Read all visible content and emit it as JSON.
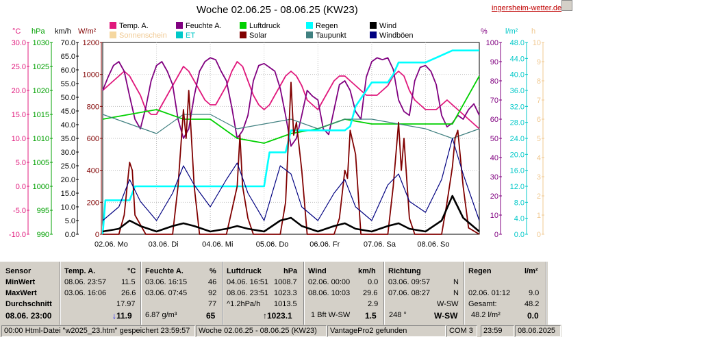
{
  "header": {
    "title": "Woche 02.06.25 - 08.06.25 (KW23)",
    "site": "ingersheim-wetter.de"
  },
  "legend": [
    {
      "label": "Temp. A.",
      "color": "#e0187c"
    },
    {
      "label": "Feuchte A.",
      "color": "#800080"
    },
    {
      "label": "Luftdruck",
      "color": "#00d000"
    },
    {
      "label": "Regen",
      "color": "#00ffff"
    },
    {
      "label": "Wind",
      "color": "#000000"
    },
    {
      "label": "Sonnenschein",
      "color": "#f5d7a0"
    },
    {
      "label": "ET",
      "color": "#00c8c8"
    },
    {
      "label": "Solar",
      "color": "#800000"
    },
    {
      "label": "Taupunkt",
      "color": "#408080"
    },
    {
      "label": "Windböen",
      "color": "#000080"
    }
  ],
  "units": {
    "celsius": "°C",
    "hpa": "hPa",
    "kmh": "km/h",
    "wm2": "W/m²",
    "pct": "%",
    "lm2": "l/m²",
    "h": "h"
  },
  "chart_data": {
    "type": "line",
    "title": "Woche 02.06.25 - 08.06.25 (KW23)",
    "x_labels": [
      "02.06.  Mo",
      "03.06.  Di",
      "04.06.  Mi",
      "05.06.  Do",
      "06.06.  Fr",
      "07.06.  Sa",
      "08.06.  So"
    ],
    "axes": {
      "temp": {
        "unit": "°C",
        "range": [
          -10,
          30
        ],
        "ticks": [
          "30.0",
          "25.0",
          "20.0",
          "15.0",
          "10.0",
          "5.0",
          "0.0",
          "-5.0",
          "-10.0"
        ],
        "color": "#e0187c"
      },
      "pressure": {
        "unit": "hPa",
        "range": [
          990,
          1030
        ],
        "ticks": [
          "1030",
          "1025",
          "1020",
          "1015",
          "1010",
          "1005",
          "1000",
          "995",
          "990"
        ],
        "color": "#00a000"
      },
      "wind": {
        "unit": "km/h",
        "range": [
          0,
          70
        ],
        "ticks": [
          "70.0",
          "65.0",
          "60.0",
          "55.0",
          "50.0",
          "45.0",
          "40.0",
          "35.0",
          "30.0",
          "25.0",
          "20.0",
          "15.0",
          "10.0",
          "5.0",
          "0.0"
        ],
        "color": "#000000"
      },
      "solar": {
        "unit": "W/m²",
        "range": [
          0,
          1200
        ],
        "ticks": [
          "1200",
          "1000",
          "800",
          "600",
          "400",
          "200",
          "0"
        ],
        "color": "#800000"
      },
      "humidity": {
        "unit": "%",
        "range": [
          0,
          100
        ],
        "ticks": [
          "100",
          "90",
          "80",
          "70",
          "60",
          "50",
          "40",
          "30",
          "20",
          "10",
          "0"
        ],
        "color": "#800080"
      },
      "rain": {
        "unit": "l/m²",
        "range": [
          0,
          48
        ],
        "ticks": [
          "48.0",
          "44.0",
          "40.0",
          "36.0",
          "32.0",
          "28.0",
          "24.0",
          "20.0",
          "16.0",
          "12.0",
          "8.0",
          "4.0",
          "0.0"
        ],
        "color": "#00c8c8"
      },
      "sun": {
        "unit": "h",
        "range": [
          0,
          10
        ],
        "ticks": [
          "10",
          "9",
          "8",
          "7",
          "6",
          "5",
          "4",
          "3",
          "2",
          "1",
          "0"
        ],
        "color": "#f0c890"
      }
    },
    "series": [
      {
        "name": "Temp. A.",
        "axis": "temp",
        "color": "#e0187c",
        "x": [
          0,
          0.1,
          0.2,
          0.3,
          0.4,
          0.5,
          0.6,
          0.7,
          0.8,
          0.9,
          1.0,
          1.1,
          1.2,
          1.3,
          1.4,
          1.5,
          1.6,
          1.7,
          1.8,
          1.9,
          2.0,
          2.1,
          2.2,
          2.3,
          2.4,
          2.5,
          2.6,
          2.7,
          2.8,
          2.9,
          3.0,
          3.1,
          3.2,
          3.3,
          3.4,
          3.5,
          3.6,
          3.7,
          3.8,
          3.9,
          4.0,
          4.1,
          4.2,
          4.3,
          4.4,
          4.5,
          4.6,
          4.7,
          4.8,
          4.9,
          5.0,
          5.1,
          5.2,
          5.3,
          5.4,
          5.5,
          5.6,
          5.7,
          5.8,
          5.9,
          6.0,
          6.1,
          6.2,
          6.3,
          6.4,
          6.5,
          6.6,
          6.7,
          6.8,
          6.9,
          7.0
        ],
        "values": [
          20,
          21,
          22,
          23,
          24,
          23,
          21,
          19,
          16,
          15,
          15,
          17,
          19,
          21,
          23,
          25,
          24,
          22,
          20,
          18,
          17,
          17,
          19,
          21,
          24,
          26,
          25,
          22,
          19,
          17,
          16,
          17,
          19,
          21,
          23,
          24,
          23,
          21,
          18,
          17,
          16,
          18,
          20,
          22,
          23,
          23,
          22,
          21,
          20,
          19,
          19,
          19,
          20,
          21,
          23,
          24,
          23,
          20,
          18,
          17,
          16,
          16,
          16,
          17,
          18,
          17,
          16,
          15,
          14,
          13,
          12
        ]
      },
      {
        "name": "Feuchte A.",
        "axis": "humidity",
        "color": "#800080",
        "x": [
          0,
          0.1,
          0.2,
          0.3,
          0.4,
          0.5,
          0.6,
          0.7,
          0.8,
          0.9,
          1.0,
          1.1,
          1.2,
          1.3,
          1.4,
          1.5,
          1.6,
          1.7,
          1.8,
          1.9,
          2.0,
          2.1,
          2.2,
          2.3,
          2.4,
          2.5,
          2.6,
          2.7,
          2.8,
          2.9,
          3.0,
          3.1,
          3.2,
          3.3,
          3.4,
          3.5,
          3.6,
          3.7,
          3.8,
          3.9,
          4.0,
          4.1,
          4.2,
          4.3,
          4.4,
          4.5,
          4.6,
          4.7,
          4.8,
          4.9,
          5.0,
          5.1,
          5.2,
          5.3,
          5.4,
          5.5,
          5.6,
          5.7,
          5.8,
          5.9,
          6.0,
          6.1,
          6.2,
          6.3,
          6.4,
          6.5,
          6.6,
          6.7,
          6.8,
          6.9,
          7.0
        ],
        "values": [
          75,
          82,
          88,
          90,
          85,
          72,
          60,
          55,
          66,
          80,
          88,
          90,
          85,
          78,
          60,
          50,
          55,
          72,
          85,
          90,
          92,
          91,
          85,
          80,
          66,
          50,
          54,
          62,
          80,
          88,
          89,
          87,
          85,
          76,
          62,
          46,
          50,
          62,
          75,
          72,
          70,
          55,
          52,
          65,
          78,
          80,
          75,
          64,
          60,
          82,
          90,
          92,
          91,
          92,
          86,
          70,
          64,
          62,
          80,
          87,
          88,
          85,
          78,
          62,
          56,
          58,
          62,
          60,
          65,
          68,
          62
        ]
      },
      {
        "name": "Luftdruck",
        "axis": "pressure",
        "color": "#00d000",
        "x": [
          0,
          0.5,
          1.0,
          1.5,
          2.0,
          2.5,
          3.0,
          3.5,
          4.0,
          4.5,
          5.0,
          5.5,
          6.0,
          6.5,
          7.0
        ],
        "values": [
          1014,
          1015,
          1016,
          1014,
          1014,
          1010,
          1009,
          1011,
          1012,
          1014,
          1013,
          1013,
          1013,
          1013,
          1023
        ]
      },
      {
        "name": "Regen",
        "axis": "rain",
        "color": "#00ffff",
        "x": [
          0,
          0.05,
          0.5,
          0.6,
          2.2,
          2.3,
          3.0,
          3.1,
          3.4,
          3.5,
          4.0,
          4.5,
          4.6,
          4.7,
          5.0,
          5.3,
          5.4,
          5.5,
          6.0,
          6.5,
          7.0
        ],
        "values": [
          0,
          8.5,
          8.5,
          12,
          12,
          12,
          12,
          20.5,
          20.5,
          26,
          26,
          26,
          27,
          32,
          38,
          38,
          40,
          43,
          43,
          46,
          46
        ]
      },
      {
        "name": "Taupunkt",
        "axis": "temp",
        "color": "#408080",
        "x": [
          0,
          0.5,
          1.0,
          1.5,
          2.0,
          2.5,
          3.0,
          3.5,
          4.0,
          4.5,
          5.0,
          5.5,
          6.0,
          6.5,
          7.0
        ],
        "values": [
          15,
          13,
          11,
          15,
          15,
          12,
          13,
          14,
          12,
          14,
          14,
          13,
          12,
          10,
          12
        ]
      },
      {
        "name": "Solar",
        "axis": "solar",
        "color": "#800000",
        "x": [
          0,
          0.3,
          0.4,
          0.5,
          0.55,
          0.6,
          0.7,
          0.8,
          1.0,
          1.3,
          1.4,
          1.5,
          1.55,
          1.6,
          1.7,
          1.8,
          2.0,
          2.3,
          2.4,
          2.5,
          2.55,
          2.6,
          2.7,
          2.8,
          3.0,
          3.3,
          3.4,
          3.5,
          3.55,
          3.6,
          3.7,
          3.8,
          4.0,
          4.3,
          4.4,
          4.5,
          4.55,
          4.6,
          4.7,
          4.8,
          5.0,
          5.3,
          5.4,
          5.5,
          5.55,
          5.6,
          5.7,
          5.8,
          6.0,
          6.3,
          6.4,
          6.5,
          6.55,
          6.6,
          6.7,
          6.8,
          7.0
        ],
        "values": [
          0,
          0,
          120,
          450,
          400,
          120,
          60,
          0,
          0,
          0,
          300,
          780,
          600,
          900,
          300,
          0,
          0,
          0,
          150,
          300,
          620,
          300,
          100,
          0,
          0,
          0,
          200,
          950,
          620,
          700,
          400,
          0,
          0,
          0,
          100,
          400,
          350,
          650,
          500,
          0,
          0,
          0,
          300,
          700,
          400,
          600,
          100,
          0,
          0,
          0,
          200,
          420,
          600,
          650,
          300,
          40,
          0
        ]
      },
      {
        "name": "Windböen",
        "axis": "wind",
        "color": "#000080",
        "x": [
          0,
          0.3,
          0.5,
          0.7,
          1.0,
          1.3,
          1.5,
          1.7,
          2.0,
          2.3,
          2.5,
          2.7,
          3.0,
          3.3,
          3.5,
          3.7,
          4.0,
          4.3,
          4.5,
          4.7,
          5.0,
          5.3,
          5.5,
          5.7,
          6.0,
          6.3,
          6.5,
          6.7,
          7.0
        ],
        "values": [
          5,
          10,
          20,
          12,
          5,
          15,
          25,
          18,
          10,
          20,
          26,
          15,
          5,
          25,
          22,
          10,
          5,
          15,
          20,
          10,
          5,
          18,
          22,
          12,
          8,
          20,
          35,
          22,
          5
        ]
      },
      {
        "name": "Wind",
        "axis": "wind",
        "color": "#000000",
        "x": [
          0,
          0.3,
          0.5,
          0.7,
          1.0,
          1.3,
          1.5,
          1.7,
          2.0,
          2.3,
          2.5,
          2.7,
          3.0,
          3.3,
          3.5,
          3.7,
          4.0,
          4.3,
          4.5,
          4.7,
          5.0,
          5.3,
          5.5,
          5.7,
          6.0,
          6.3,
          6.5,
          6.7,
          7.0
        ],
        "values": [
          1,
          2,
          5,
          3,
          1,
          3,
          4,
          3,
          1,
          2,
          3,
          2,
          1,
          5,
          6,
          3,
          1,
          3,
          4,
          2,
          1,
          3,
          4,
          2,
          1,
          5,
          14,
          6,
          1
        ]
      }
    ]
  },
  "table": {
    "headers": {
      "sensor": "Sensor",
      "temp": "Temp. A.",
      "temp_unit": "°C",
      "hum": "Feuchte A.",
      "hum_unit": "%",
      "press": "Luftdruck",
      "press_unit": "hPa",
      "wind": "Wind",
      "wind_unit": "km/h",
      "dir": "Richtung",
      "rain": "Regen",
      "rain_unit": "l/m²"
    },
    "rows": {
      "min_label": "MinWert",
      "max_label": "MaxWert",
      "avg_label": "Durchschnitt",
      "now_label": "08.06. 23:00",
      "temp_min_dt": "08.06.  23:57",
      "temp_min": "11.5",
      "temp_max_dt": "03.06.  16:06",
      "temp_max": "26.6",
      "temp_avg": "17.97",
      "temp_now": "11.9",
      "hum_min_dt": "03.06.  16:15",
      "hum_min": "46",
      "hum_max_dt": "03.06.  07:45",
      "hum_max": "92",
      "hum_avg": "77",
      "hum_now_abs": "6.87 g/m³",
      "hum_now": "65",
      "press_min_dt": "04.06.  16:51",
      "press_min": "1008.7",
      "press_max_dt": "08.06.  23:51",
      "press_max": "1023.3",
      "press_trend": "^1.2hPa/h",
      "press_avg": "1013.5",
      "press_now": "1023.1",
      "wind_min_dt": "02.06.  00:00",
      "wind_min": "0.0",
      "wind_max_dt": "08.06.  10:03",
      "wind_max": "29.6",
      "wind_avg": "2.9",
      "wind_now_bft": "1 Bft W-SW",
      "wind_now": "1.5",
      "dir_min_dt": "03.06.  09:57",
      "dir_min": "N",
      "dir_max_dt": "07.06.  08:27",
      "dir_max": "N",
      "dir_avg": "W-SW",
      "dir_now_deg": "248 °",
      "dir_now": "W-SW",
      "rain_max_dt": "02.06.  01:12",
      "rain_max": "9.0",
      "rain_total_label": "Gesamt:",
      "rain_total": "48.2",
      "rain_now_total": "48.2 l/m²",
      "rain_now": "0.0"
    }
  },
  "status": {
    "file": "00:00  Html-Datei  \"w2025_23.htm\"  gespeichert 23:59:57",
    "period": "Woche 02.06.25 - 08.06.25 (KW23)",
    "station": "VantagePro2 gefunden",
    "port": "COM 3",
    "time": "23:59",
    "date": "08.06.2025"
  }
}
